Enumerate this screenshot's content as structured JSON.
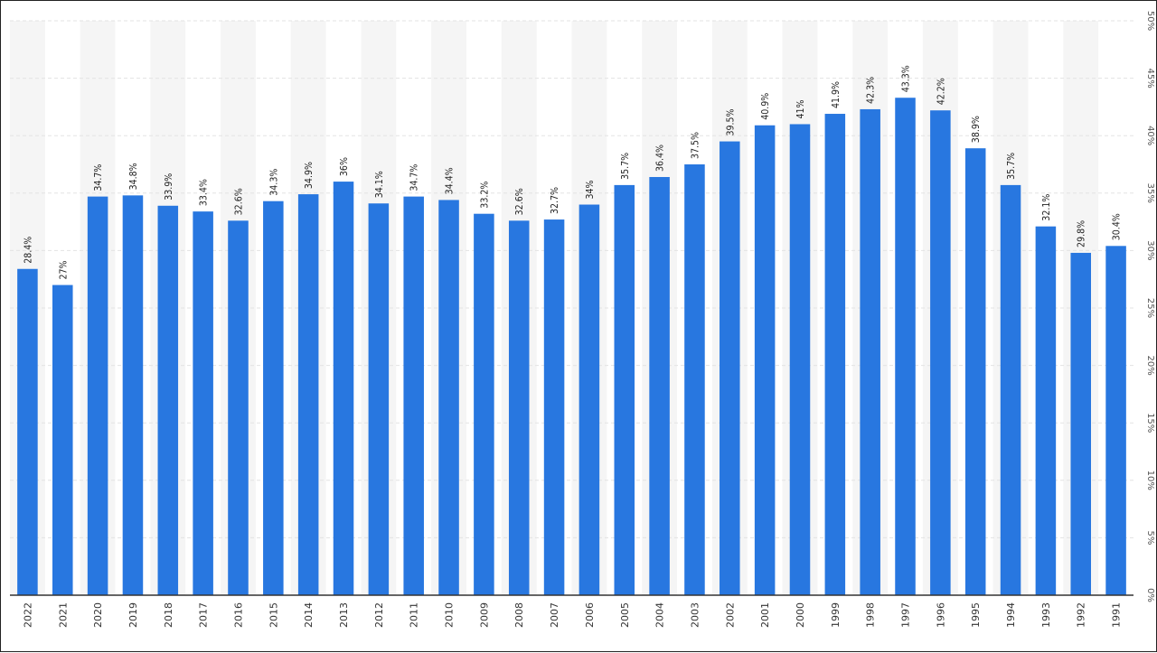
{
  "chart_data": {
    "type": "bar",
    "categories": [
      "2022",
      "2021",
      "2020",
      "2019",
      "2018",
      "2017",
      "2016",
      "2015",
      "2014",
      "2013",
      "2012",
      "2011",
      "2010",
      "2009",
      "2008",
      "2007",
      "2006",
      "2005",
      "2004",
      "2003",
      "2002",
      "2001",
      "2000",
      "1999",
      "1998",
      "1997",
      "1996",
      "1995",
      "1994",
      "1993",
      "1992",
      "1991"
    ],
    "values": [
      28.4,
      27,
      34.7,
      34.8,
      33.9,
      33.4,
      32.6,
      34.3,
      34.9,
      36,
      34.1,
      34.7,
      34.4,
      33.2,
      32.6,
      32.7,
      34,
      35.7,
      36.4,
      37.5,
      39.5,
      40.9,
      41,
      41.9,
      42.3,
      43.3,
      42.2,
      38.9,
      35.7,
      32.1,
      29.8,
      30.4
    ],
    "value_labels": [
      "28.4%",
      "27%",
      "34.7%",
      "34.8%",
      "33.9%",
      "33.4%",
      "32.6%",
      "34.3%",
      "34.9%",
      "36%",
      "34.1%",
      "34.7%",
      "34.4%",
      "33.2%",
      "32.6%",
      "32.7%",
      "34%",
      "35.7%",
      "36.4%",
      "37.5%",
      "39.5%",
      "40.9%",
      "41%",
      "41.9%",
      "42.3%",
      "43.3%",
      "42.2%",
      "38.9%",
      "35.7%",
      "32.1%",
      "29.8%",
      "30.4%"
    ],
    "ylim": [
      0,
      50
    ],
    "yticks": [
      0,
      5,
      10,
      15,
      20,
      25,
      30,
      35,
      40,
      45,
      50
    ],
    "ytick_labels": [
      "0%",
      "5%",
      "10%",
      "15%",
      "20%",
      "25%",
      "30%",
      "35%",
      "40%",
      "45%",
      "50%"
    ],
    "y_axis_position": "right",
    "grid": true,
    "bar_color": "#2877e0",
    "title": "",
    "xlabel": "",
    "ylabel": ""
  }
}
